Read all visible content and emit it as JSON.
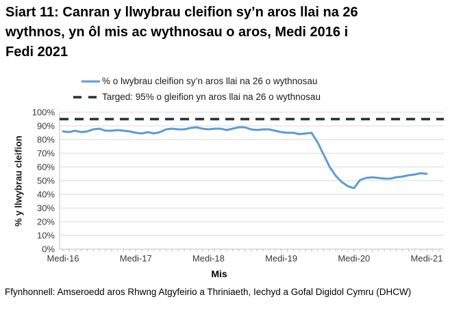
{
  "title_lines": [
    "Siart 11: Canran y llwybrau cleifion sy’n aros llai na 26",
    "wythnos, yn ôl mis ac wythnosau o aros, Medi 2016 i",
    "Fedi 2021"
  ],
  "footer": {
    "source": "Ffynhonnell: Amseroedd aros Rhwng Atgyfeirio a Thriniaeth, Iechyd a Gofal Digidol Cymru (DHCW)"
  },
  "chart_data": {
    "type": "line",
    "title": "Siart 11: Canran y llwybrau cleifion sy’n aros llai na 26 wythnos, yn ôl mis ac wythnosau o aros, Medi 2016 i Fedi 2021",
    "xlabel": "Mis",
    "ylabel": "% y llwybrau cleifion",
    "ylim": [
      0,
      100
    ],
    "grid": "horizontal",
    "legend_position": "top",
    "target_value": 95,
    "colors": {
      "series_line": "#5b9bd5",
      "target_line": "#232c39",
      "gridline": "#d9d9d9",
      "axis_line": "#bfbfbf"
    },
    "y_tick_labels": [
      "0%",
      "10%",
      "20%",
      "30%",
      "40%",
      "50%",
      "60%",
      "70%",
      "80%",
      "90%",
      "100%"
    ],
    "x_tick_labels": [
      "Medi-16",
      "Medi-17",
      "Medi-18",
      "Medi-19",
      "Medi-20",
      "Medi-21"
    ],
    "x": [
      "2016-09",
      "2016-10",
      "2016-11",
      "2016-12",
      "2017-01",
      "2017-02",
      "2017-03",
      "2017-04",
      "2017-05",
      "2017-06",
      "2017-07",
      "2017-08",
      "2017-09",
      "2017-10",
      "2017-11",
      "2017-12",
      "2018-01",
      "2018-02",
      "2018-03",
      "2018-04",
      "2018-05",
      "2018-06",
      "2018-07",
      "2018-08",
      "2018-09",
      "2018-10",
      "2018-11",
      "2018-12",
      "2019-01",
      "2019-02",
      "2019-03",
      "2019-04",
      "2019-05",
      "2019-06",
      "2019-07",
      "2019-08",
      "2019-09",
      "2019-10",
      "2019-11",
      "2019-12",
      "2020-01",
      "2020-02",
      "2020-03",
      "2020-04",
      "2020-05",
      "2020-06",
      "2020-07",
      "2020-08",
      "2020-09",
      "2020-10",
      "2020-11",
      "2020-12",
      "2021-01",
      "2021-02",
      "2021-03",
      "2021-04",
      "2021-05",
      "2021-06",
      "2021-07",
      "2021-08",
      "2021-09"
    ],
    "series": [
      {
        "name": "% o lwybrau cleifion sy’n aros llai na 26 o wythnosau",
        "style": "solid",
        "color": "#5b9bd5",
        "values": [
          86,
          85.5,
          86.5,
          85.5,
          86,
          87.5,
          88,
          86.5,
          86.5,
          87,
          86.5,
          86,
          85,
          84.5,
          85.5,
          84.5,
          85.5,
          87.5,
          88,
          87.5,
          87.5,
          88.5,
          89,
          88,
          87.5,
          88,
          88,
          87,
          88,
          89,
          89,
          87.5,
          87,
          87.5,
          87.5,
          86.5,
          85.5,
          85,
          85,
          84,
          84.5,
          85,
          78,
          69,
          60,
          53.5,
          49,
          46,
          44.5,
          50.5,
          52,
          52.5,
          52,
          51.5,
          51.5,
          52.5,
          53,
          54,
          54.5,
          55.5,
          55
        ]
      },
      {
        "name": "Targed: 95% o gleifion yn aros llai na 26 o wythnosau",
        "style": "dashed",
        "color": "#232c39",
        "constant_value": 95
      }
    ]
  }
}
